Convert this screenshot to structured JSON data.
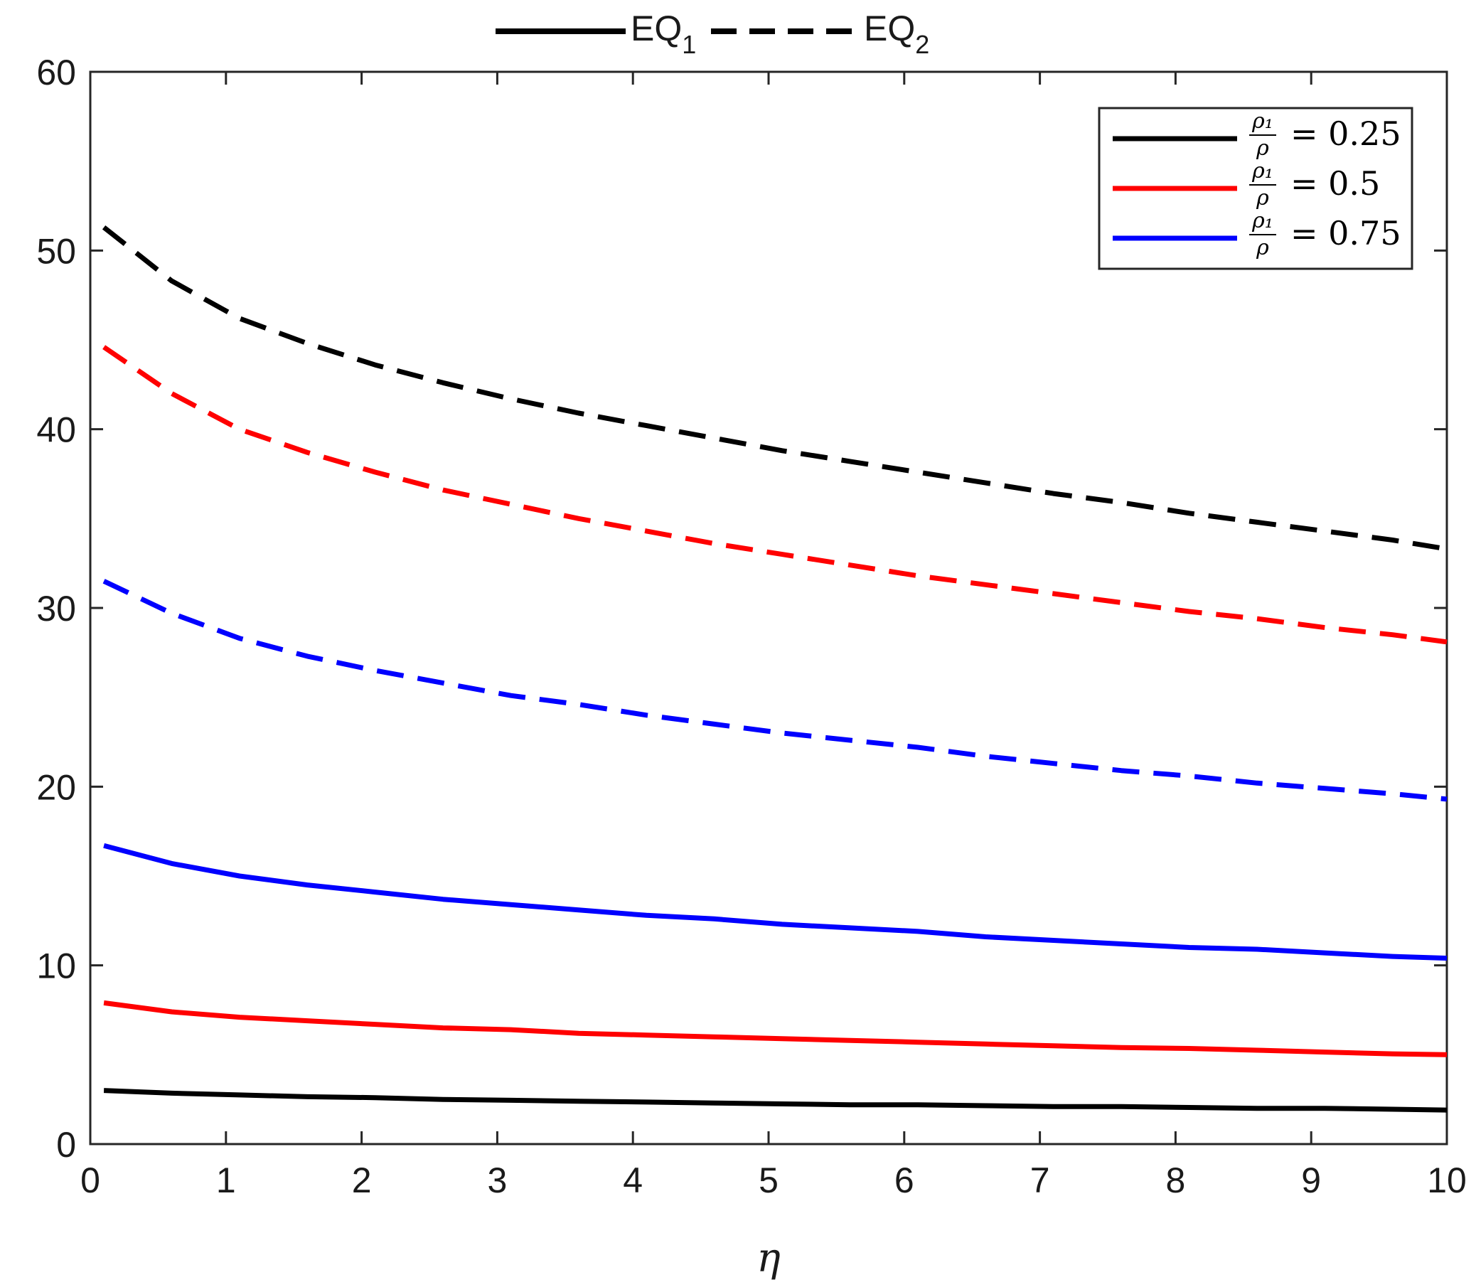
{
  "chart_data": {
    "type": "line",
    "title": "",
    "xlabel": "η",
    "ylabel": "",
    "xlim": [
      0,
      10
    ],
    "ylim": [
      0,
      60
    ],
    "grid": false,
    "x_ticks": [
      "0",
      "1",
      "2",
      "3",
      "4",
      "5",
      "6",
      "7",
      "8",
      "9",
      "10"
    ],
    "y_ticks": [
      "0",
      "10",
      "20",
      "30",
      "40",
      "50",
      "60"
    ],
    "x": [
      0.1,
      0.6,
      1.1,
      1.6,
      2.1,
      2.6,
      3.1,
      3.6,
      4.1,
      4.6,
      5.1,
      5.6,
      6.1,
      6.6,
      7.1,
      7.6,
      8.1,
      8.6,
      9.1,
      9.6,
      10.0
    ],
    "style_legend": {
      "position": "top-center-outside",
      "entries": [
        {
          "label": "EQ",
          "subscript": "1",
          "line_style": "solid"
        },
        {
          "label": "EQ",
          "subscript": "2",
          "line_style": "dashed"
        }
      ]
    },
    "color_legend": {
      "position": "top-right",
      "entries": [
        {
          "numerator": "ρ₁",
          "denominator": "ρ",
          "value": "= 0.25",
          "color": "#000000"
        },
        {
          "numerator": "ρ₁",
          "denominator": "ρ",
          "value": "= 0.5",
          "color": "#ff0000"
        },
        {
          "numerator": "ρ₁",
          "denominator": "ρ",
          "value": "= 0.75",
          "color": "#0000ff"
        }
      ]
    },
    "series": [
      {
        "group": "EQ2",
        "ratio": "0.25",
        "color": "#000000",
        "dash": "dashed",
        "values": [
          51.3,
          48.3,
          46.2,
          44.8,
          43.6,
          42.6,
          41.7,
          40.9,
          40.2,
          39.5,
          38.8,
          38.2,
          37.6,
          37.0,
          36.4,
          35.9,
          35.3,
          34.8,
          34.3,
          33.8,
          33.3
        ]
      },
      {
        "group": "EQ2",
        "ratio": "0.5",
        "color": "#ff0000",
        "dash": "dashed",
        "values": [
          44.6,
          42.0,
          40.0,
          38.7,
          37.6,
          36.6,
          35.8,
          35.0,
          34.3,
          33.6,
          33.0,
          32.4,
          31.8,
          31.3,
          30.8,
          30.3,
          29.8,
          29.4,
          28.9,
          28.5,
          28.1
        ]
      },
      {
        "group": "EQ2",
        "ratio": "0.75",
        "color": "#0000ff",
        "dash": "dashed",
        "values": [
          31.5,
          29.7,
          28.3,
          27.3,
          26.5,
          25.8,
          25.1,
          24.6,
          24.0,
          23.5,
          23.0,
          22.6,
          22.2,
          21.7,
          21.3,
          20.9,
          20.6,
          20.2,
          19.9,
          19.6,
          19.3
        ]
      },
      {
        "group": "EQ1",
        "ratio": "0.75",
        "color": "#0000ff",
        "dash": "solid",
        "values": [
          16.7,
          15.7,
          15.0,
          14.5,
          14.1,
          13.7,
          13.4,
          13.1,
          12.8,
          12.6,
          12.3,
          12.1,
          11.9,
          11.6,
          11.4,
          11.2,
          11.0,
          10.9,
          10.7,
          10.5,
          10.4
        ]
      },
      {
        "group": "EQ1",
        "ratio": "0.5",
        "color": "#ff0000",
        "dash": "solid",
        "values": [
          7.9,
          7.4,
          7.1,
          6.9,
          6.7,
          6.5,
          6.4,
          6.2,
          6.1,
          6.0,
          5.9,
          5.8,
          5.7,
          5.6,
          5.5,
          5.4,
          5.35,
          5.25,
          5.15,
          5.05,
          5.0
        ]
      },
      {
        "group": "EQ1",
        "ratio": "0.25",
        "color": "#000000",
        "dash": "solid",
        "values": [
          3.0,
          2.85,
          2.75,
          2.65,
          2.6,
          2.5,
          2.45,
          2.4,
          2.35,
          2.3,
          2.25,
          2.2,
          2.2,
          2.15,
          2.1,
          2.1,
          2.05,
          2.0,
          2.0,
          1.95,
          1.9
        ]
      }
    ]
  }
}
